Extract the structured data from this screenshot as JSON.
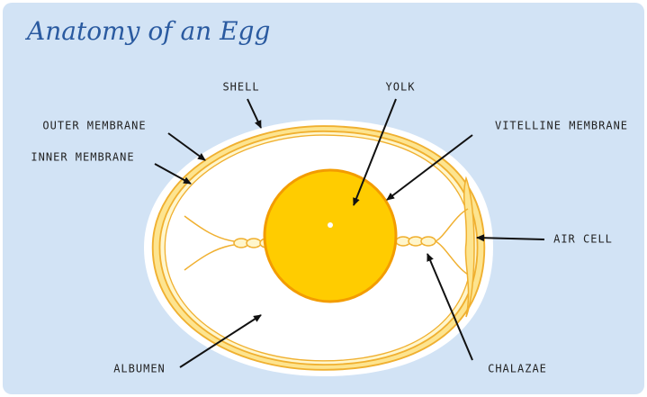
{
  "title": "Anatomy of an Egg",
  "labels": [
    "SHELL",
    "YOLK",
    "OUTER MEMBRANE",
    "VITELLINE MEMBRANE",
    "INNER MEMBRANE",
    "AIR CELL",
    "CHALAZAE",
    "ALBUMEN"
  ]
}
